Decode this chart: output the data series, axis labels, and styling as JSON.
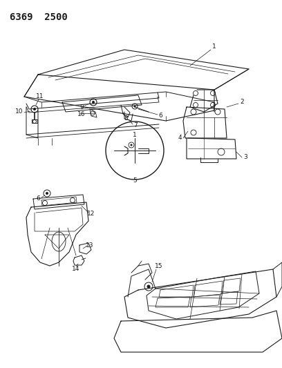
{
  "title": "6369  2500",
  "bg_color": "#ffffff",
  "line_color": "#1a1a1a",
  "title_fontsize": 10,
  "fig_width": 4.08,
  "fig_height": 5.33,
  "dpi": 100
}
